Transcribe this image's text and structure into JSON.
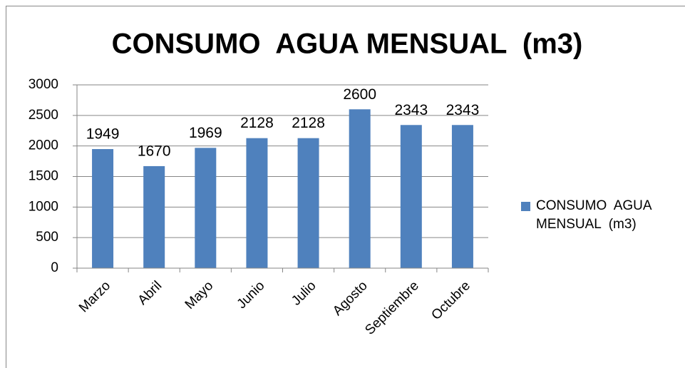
{
  "chart_data": {
    "type": "bar",
    "title": "CONSUMO  AGUA MENSUAL  (m3)",
    "categories": [
      "Marzo",
      "Abril",
      "Mayo",
      "Junio",
      "Julio",
      "Agosto",
      "Septiembre",
      "Octubre"
    ],
    "series": [
      {
        "name": "CONSUMO  AGUA MENSUAL  (m3)",
        "color": "#4f81bd",
        "values": [
          1949,
          1670,
          1969,
          2128,
          2128,
          2600,
          2343,
          2343
        ]
      }
    ],
    "ylim": [
      0,
      3000
    ],
    "yticks": [
      0,
      500,
      1000,
      1500,
      2000,
      2500,
      3000
    ],
    "grid": true,
    "legend": "right",
    "data_labels": true
  }
}
